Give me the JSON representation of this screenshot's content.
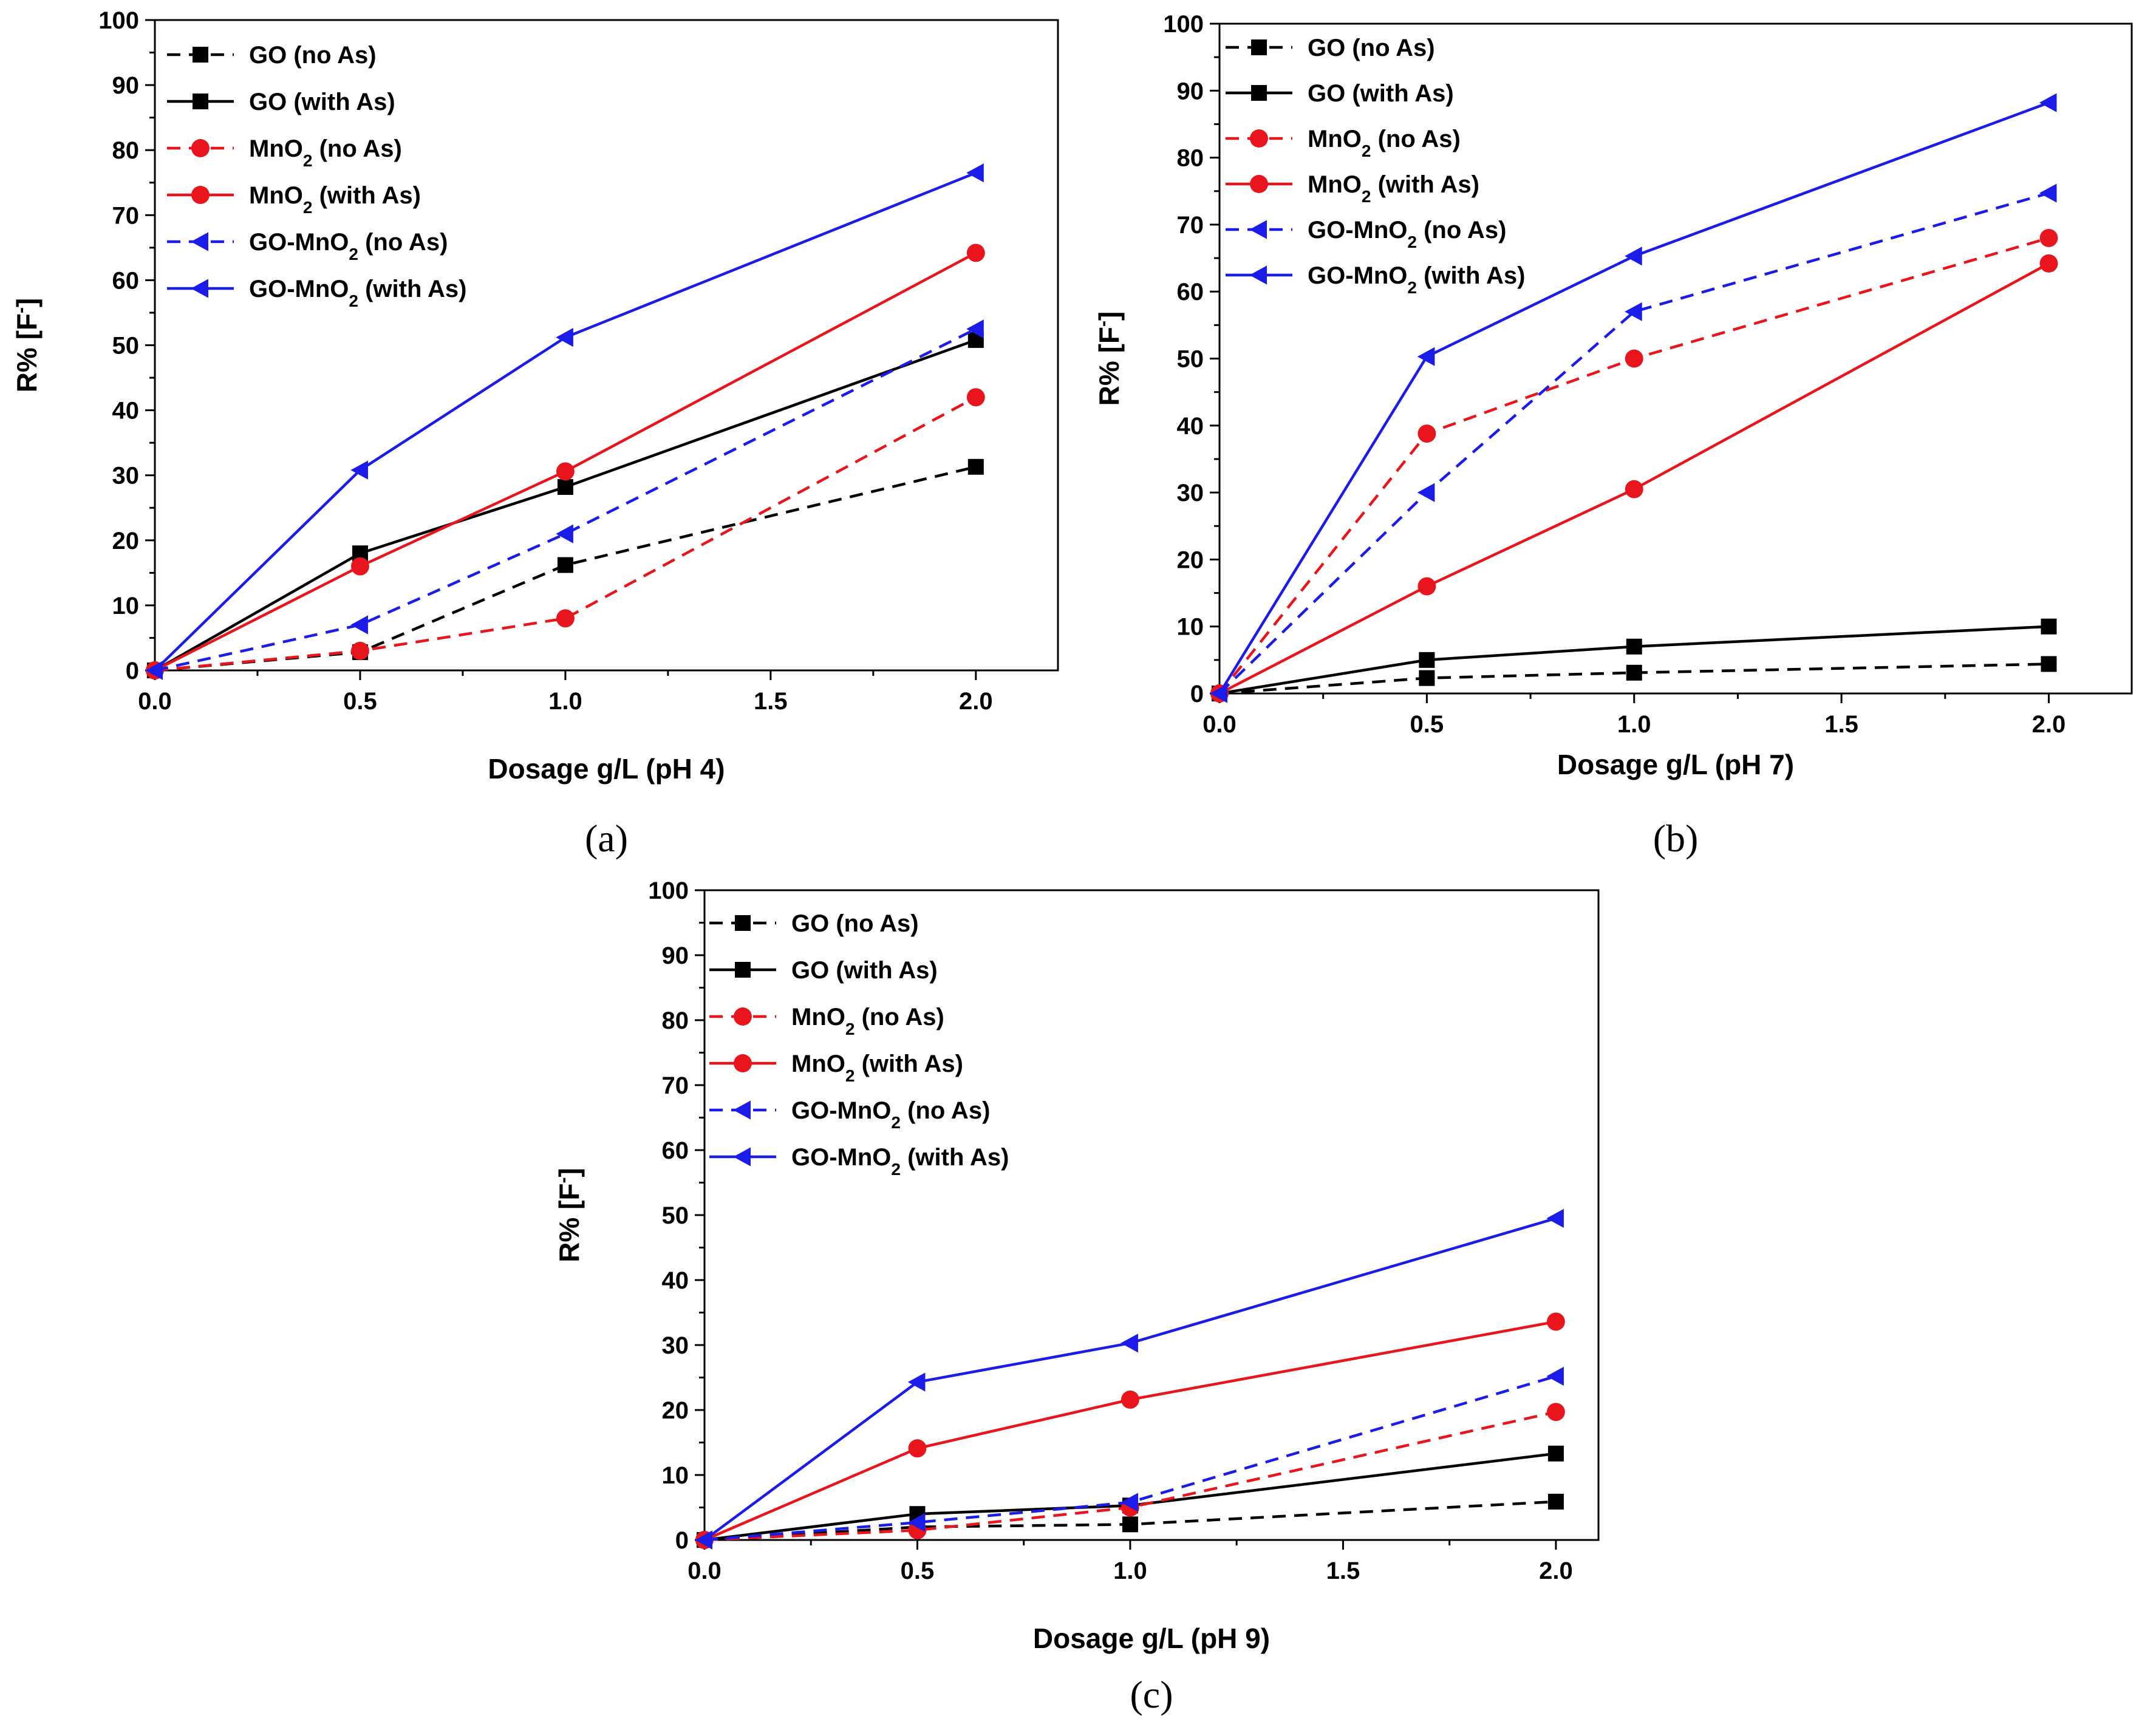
{
  "colors": {
    "black": "#000000",
    "red": "#e8161c",
    "blue": "#1c1ce8"
  },
  "legend_items": [
    {
      "base": "GO",
      "sub": "",
      "suffix": " (no As)",
      "color": "black",
      "dash": true,
      "marker": "square"
    },
    {
      "base": "GO",
      "sub": "",
      "suffix": " (with As)",
      "color": "black",
      "dash": false,
      "marker": "square"
    },
    {
      "base": "MnO",
      "sub": "2",
      "suffix": " (no As)",
      "color": "red",
      "dash": true,
      "marker": "circle"
    },
    {
      "base": "MnO",
      "sub": "2",
      "suffix": " (with As)",
      "color": "red",
      "dash": false,
      "marker": "circle"
    },
    {
      "base": "GO-MnO",
      "sub": "2",
      "suffix": " (no As)",
      "color": "blue",
      "dash": true,
      "marker": "triangle-left"
    },
    {
      "base": "GO-MnO",
      "sub": "2",
      "suffix": " (with As)",
      "color": "blue",
      "dash": false,
      "marker": "triangle-left"
    }
  ],
  "chart_data": [
    {
      "type": "line",
      "panel_label": "(a)",
      "xlabel": "Dosage g/L (pH 4)",
      "ylabel": "R% [F",
      "ylabel_sup": "-",
      "ylabel_end": "]",
      "xlim": [
        0,
        2.2
      ],
      "ylim": [
        0,
        100
      ],
      "x": [
        0,
        0.5,
        1.0,
        2.0
      ],
      "x_ticks": [
        "0.0",
        "0.5",
        "1.0",
        "1.5",
        "2.0"
      ],
      "y_ticks": [
        "0",
        "10",
        "20",
        "30",
        "40",
        "50",
        "60",
        "70",
        "80",
        "90",
        "100"
      ],
      "legend_position": "top-left",
      "series": [
        {
          "name": "GO (no As)",
          "values": [
            0,
            2.8,
            16.2,
            31.3
          ]
        },
        {
          "name": "GO (with As)",
          "values": [
            0,
            18.0,
            28.2,
            50.8
          ]
        },
        {
          "name": "MnO2 (no As)",
          "values": [
            0,
            3.0,
            8.0,
            42.0
          ]
        },
        {
          "name": "MnO2 (with As)",
          "values": [
            0,
            16.0,
            30.6,
            64.2
          ]
        },
        {
          "name": "GO-MnO2 (no As)",
          "values": [
            0,
            7.0,
            21.0,
            52.5
          ]
        },
        {
          "name": "GO-MnO2 (with As)",
          "values": [
            0,
            30.8,
            51.2,
            76.5
          ]
        }
      ]
    },
    {
      "type": "line",
      "panel_label": "(b)",
      "xlabel": "Dosage g/L (pH 7)",
      "ylabel": "R% [F",
      "ylabel_sup": "-",
      "ylabel_end": "]",
      "xlim": [
        0,
        2.2
      ],
      "ylim": [
        0,
        100
      ],
      "x": [
        0,
        0.5,
        1.0,
        2.0
      ],
      "x_ticks": [
        "0.0",
        "0.5",
        "1.0",
        "1.5",
        "2.0"
      ],
      "y_ticks": [
        "0",
        "10",
        "20",
        "30",
        "40",
        "50",
        "60",
        "70",
        "80",
        "90",
        "100"
      ],
      "legend_position": "top-left",
      "series": [
        {
          "name": "GO (no As)",
          "values": [
            0,
            2.3,
            3.1,
            4.4
          ]
        },
        {
          "name": "GO (with As)",
          "values": [
            0,
            5.0,
            7.0,
            10.0
          ]
        },
        {
          "name": "MnO2 (no As)",
          "values": [
            0,
            38.8,
            50.0,
            68.0
          ]
        },
        {
          "name": "MnO2 (with As)",
          "values": [
            0,
            16.0,
            30.5,
            64.2
          ]
        },
        {
          "name": "GO-MnO2 (no As)",
          "values": [
            0,
            30.0,
            57.0,
            74.7
          ]
        },
        {
          "name": "GO-MnO2 (with As)",
          "values": [
            0,
            50.3,
            65.3,
            88.2
          ]
        }
      ]
    },
    {
      "type": "line",
      "panel_label": "(c)",
      "xlabel": "Dosage g/L (pH 9)",
      "ylabel": "R% [F",
      "ylabel_sup": "-",
      "ylabel_end": "]",
      "xlim": [
        0,
        2.1
      ],
      "ylim": [
        0,
        100
      ],
      "x": [
        0,
        0.5,
        1.0,
        2.0
      ],
      "x_ticks": [
        "0.0",
        "0.5",
        "1.0",
        "1.5",
        "2.0"
      ],
      "y_ticks": [
        "0",
        "10",
        "20",
        "30",
        "40",
        "50",
        "60",
        "70",
        "80",
        "90",
        "100"
      ],
      "legend_position": "top-left",
      "series": [
        {
          "name": "GO (no As)",
          "values": [
            0,
            2.0,
            2.4,
            5.9
          ]
        },
        {
          "name": "GO (with As)",
          "values": [
            0,
            4.0,
            5.3,
            13.3
          ]
        },
        {
          "name": "MnO2 (no As)",
          "values": [
            0,
            1.5,
            5.0,
            19.7
          ]
        },
        {
          "name": "MnO2 (with As)",
          "values": [
            0,
            14.1,
            21.6,
            33.6
          ]
        },
        {
          "name": "GO-MnO2 (no As)",
          "values": [
            0,
            2.7,
            5.8,
            25.2
          ]
        },
        {
          "name": "GO-MnO2 (with As)",
          "values": [
            0,
            24.3,
            30.3,
            49.5
          ]
        }
      ]
    }
  ]
}
